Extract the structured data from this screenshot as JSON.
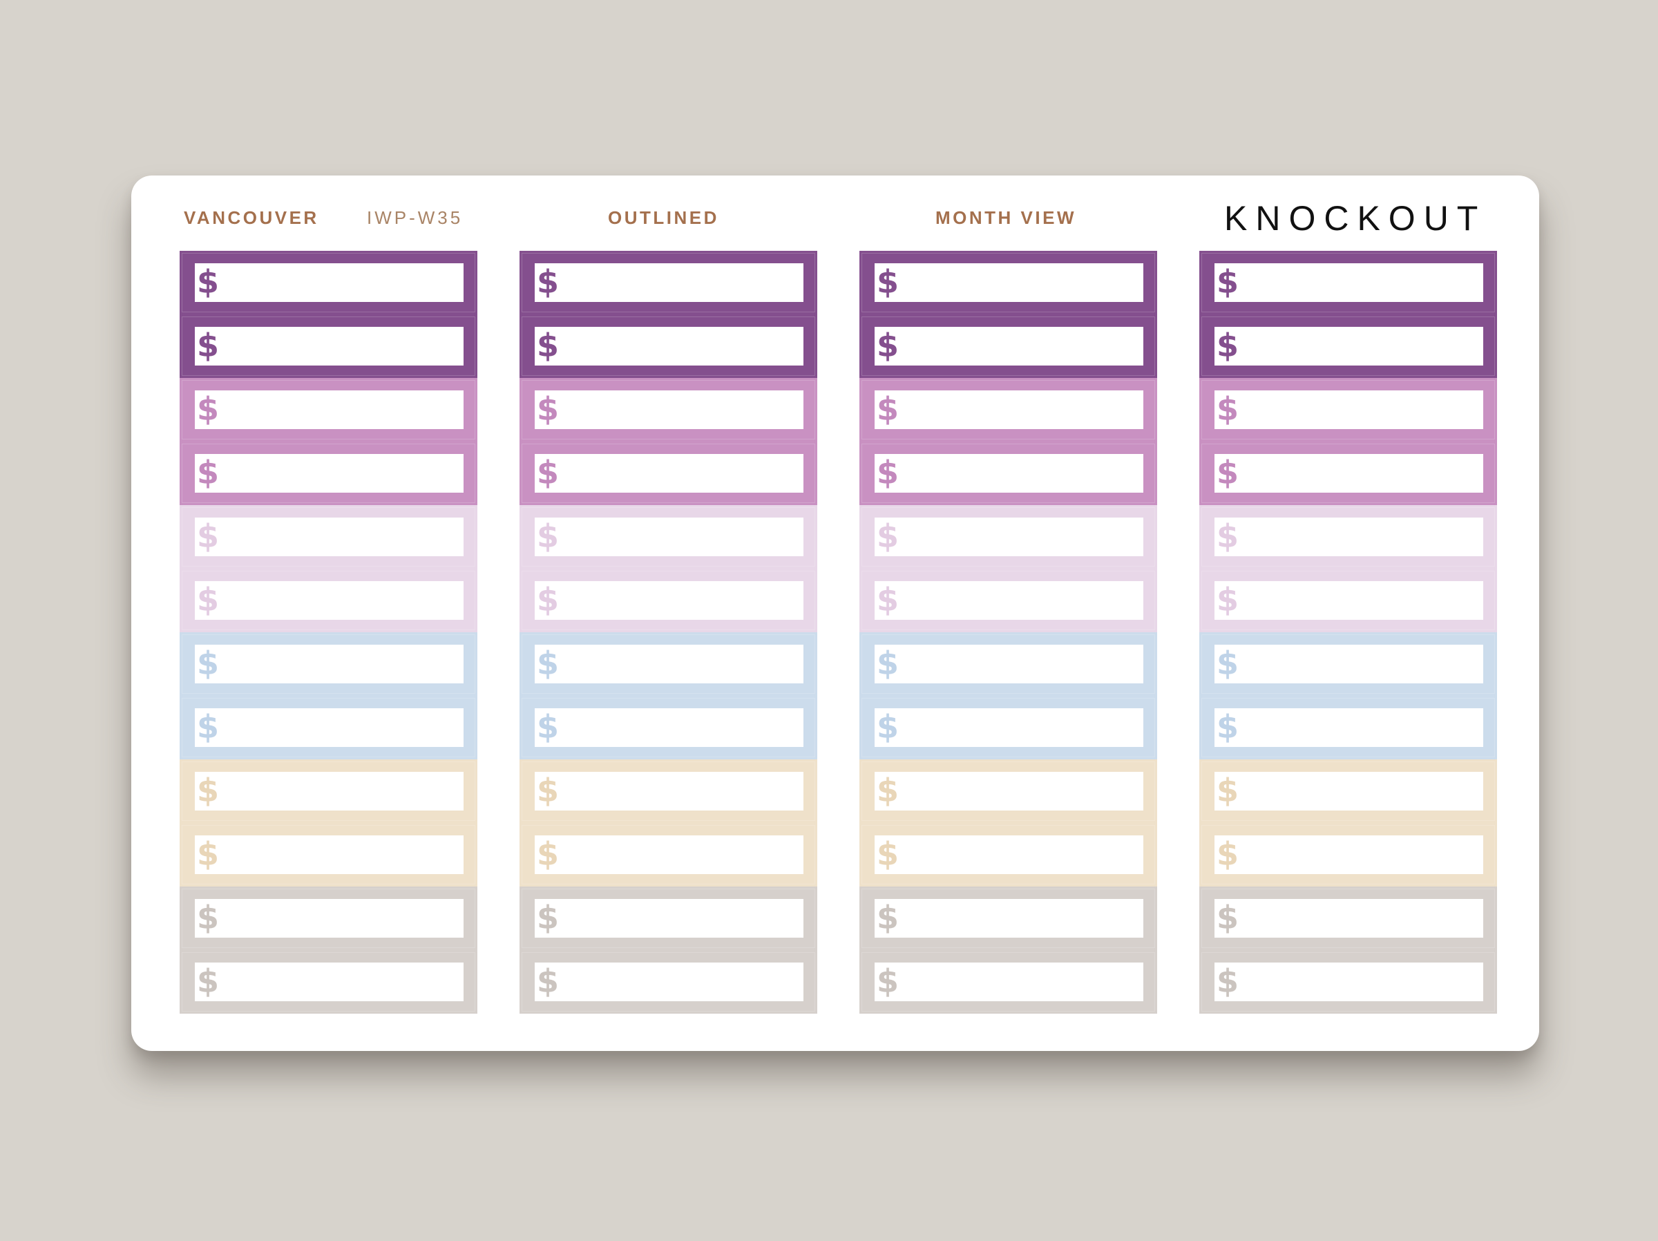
{
  "header": {
    "collection": "VANCOUVER",
    "code": "IWP-W35",
    "style": "OUTLINED",
    "layout": "MONTH VIEW",
    "brand": "KNOCKOUT"
  },
  "sticker_icon": "dollar-sign-icon",
  "sticker_glyph": "$",
  "colors": {
    "background": "#d7d3cc",
    "sheet": "#ffffff",
    "header_text": "#a4704d",
    "brand_text": "#111111"
  },
  "palette": [
    {
      "name": "plum",
      "frame": "#844f8e",
      "symbol": "#844f8e"
    },
    {
      "name": "plum",
      "frame": "#844f8e",
      "symbol": "#844f8e"
    },
    {
      "name": "orchid",
      "frame": "#c991c2",
      "symbol": "#c389bd"
    },
    {
      "name": "orchid",
      "frame": "#c991c2",
      "symbol": "#c389bd"
    },
    {
      "name": "lilac",
      "frame": "#e8d7e8",
      "symbol": "#e3cce2"
    },
    {
      "name": "lilac",
      "frame": "#e8d7e8",
      "symbol": "#e3cce2"
    },
    {
      "name": "sky",
      "frame": "#ccdcec",
      "symbol": "#bfd3e8"
    },
    {
      "name": "sky",
      "frame": "#ccdcec",
      "symbol": "#bfd3e8"
    },
    {
      "name": "sand",
      "frame": "#efe1ca",
      "symbol": "#e9d6b8"
    },
    {
      "name": "sand",
      "frame": "#efe1ca",
      "symbol": "#e9d6b8"
    },
    {
      "name": "greige",
      "frame": "#d6d0cc",
      "symbol": "#cbc4bf"
    },
    {
      "name": "greige",
      "frame": "#d6d0cc",
      "symbol": "#cbc4bf"
    }
  ],
  "columns": 4
}
